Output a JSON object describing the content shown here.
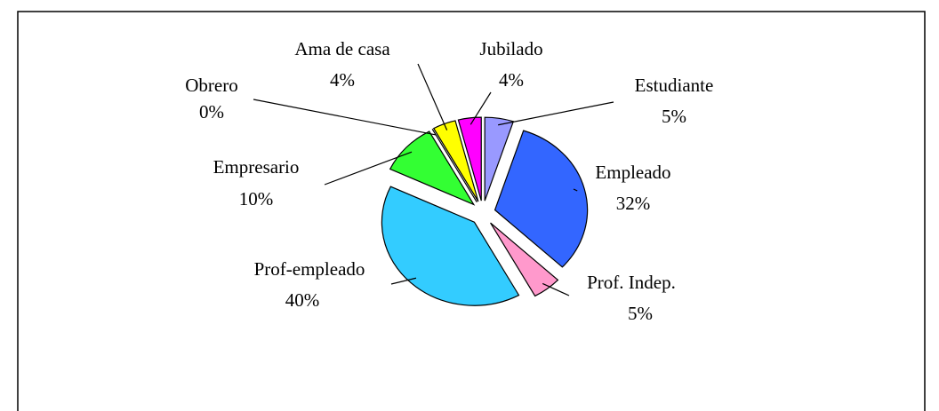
{
  "chart_data": {
    "type": "pie",
    "categories": [
      "Estudiante",
      "Empleado",
      "Prof. Indep.",
      "Prof-empleado",
      "Empresario",
      "Obrero",
      "Ama de casa",
      "Jubilado"
    ],
    "values": [
      5,
      32,
      5,
      40,
      10,
      0,
      4,
      4
    ],
    "value_labels": [
      "5%",
      "32%",
      "5%",
      "40%",
      "10%",
      "0%",
      "4%",
      "4%"
    ],
    "colors": [
      "#9999ff",
      "#3366ff",
      "#ff99cc",
      "#33ccff",
      "#33ff33",
      "#993366",
      "#ffff00",
      "#ff00ff"
    ]
  }
}
